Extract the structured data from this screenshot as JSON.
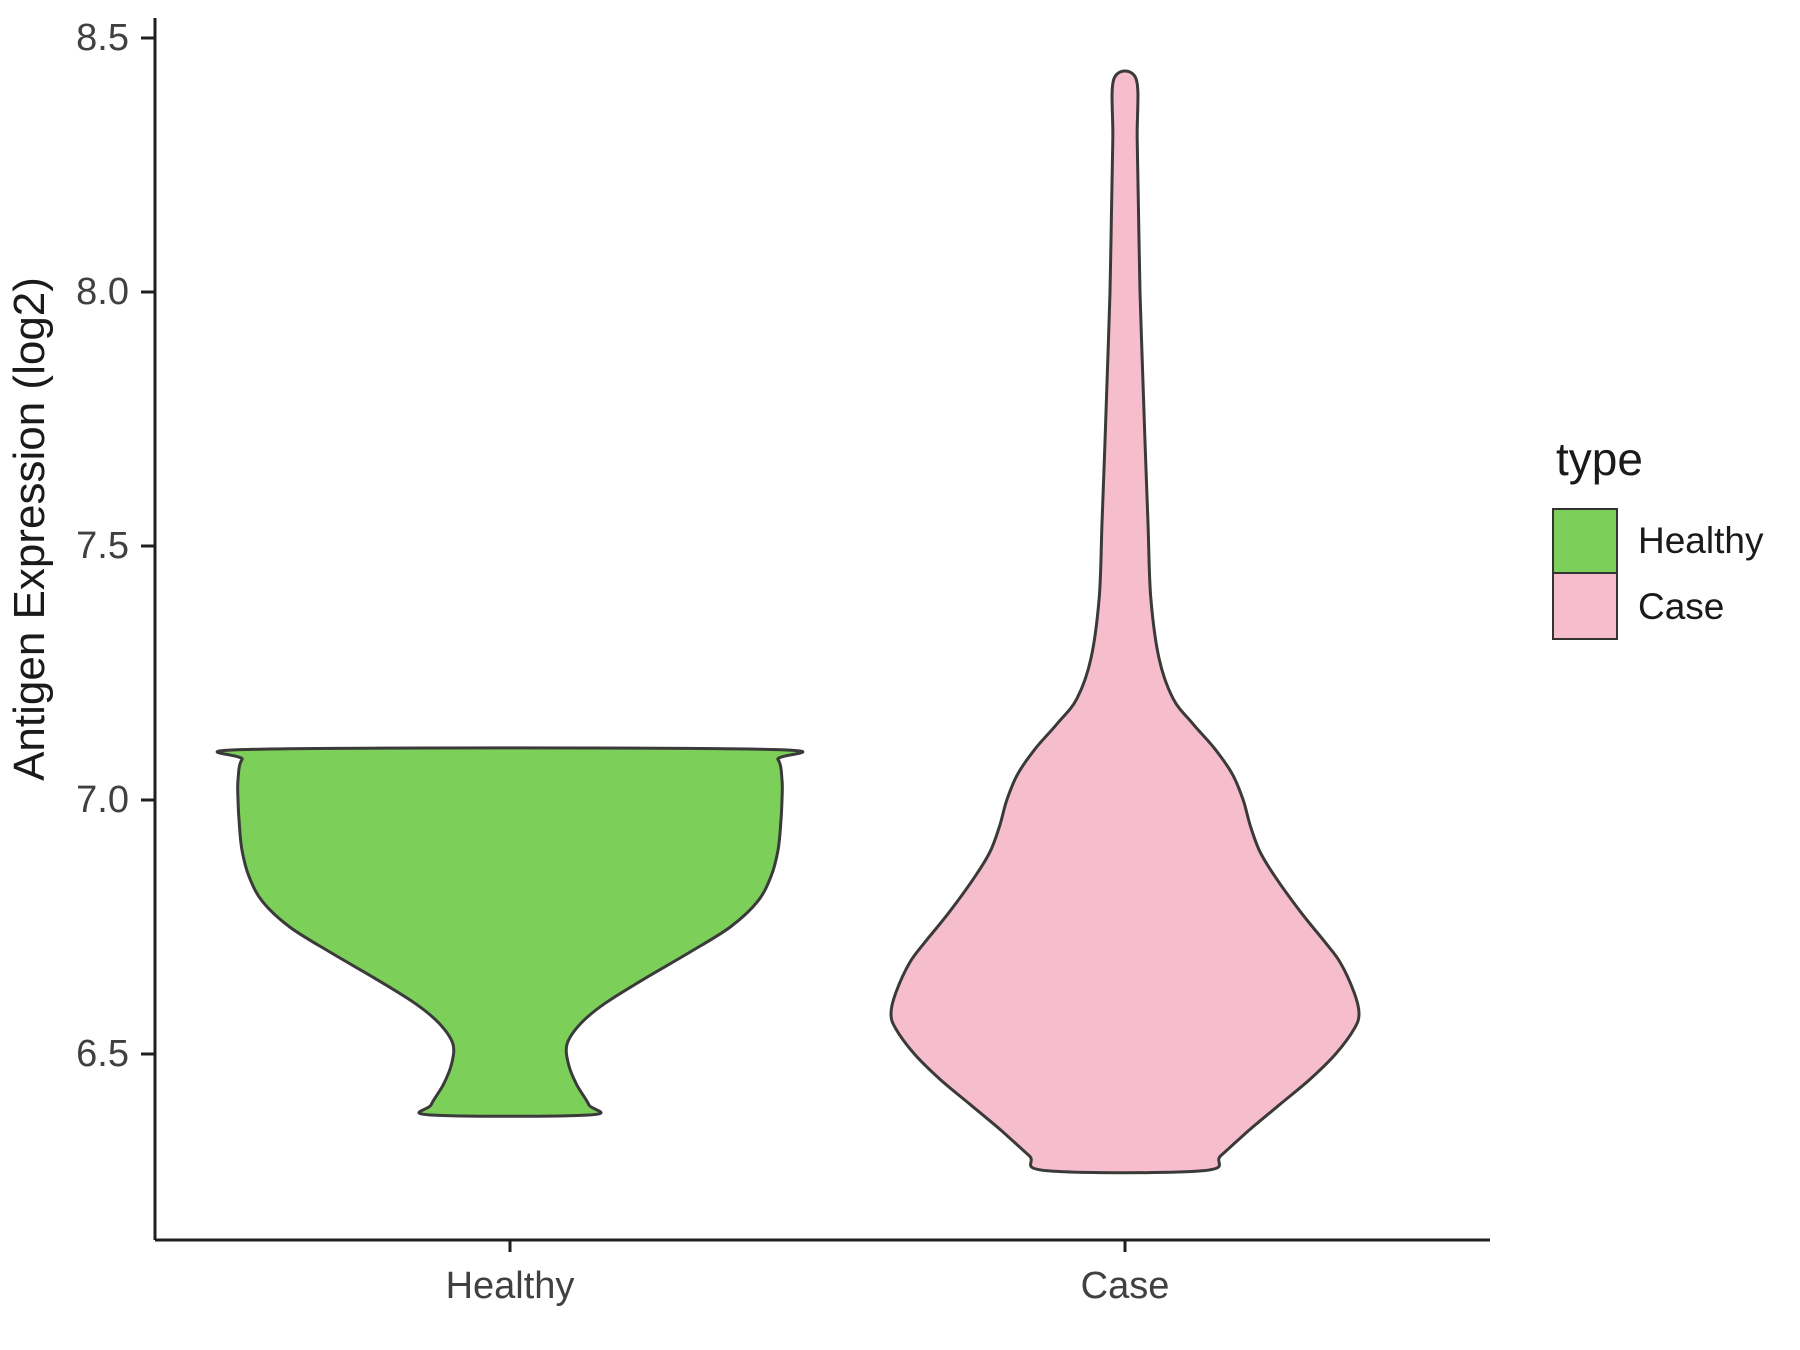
{
  "figure": {
    "background": "#ffffff"
  },
  "axes": {
    "y_title": "Antigen Expression (log2)",
    "y_tick_labels": [
      "6.5",
      "7.0",
      "7.5",
      "8.0",
      "8.5"
    ],
    "x_category_labels": [
      "Healthy",
      "Case"
    ],
    "axis_color": "#1f1f1f",
    "tick_label_color": "#404040"
  },
  "legend": {
    "title": "type",
    "entries": [
      {
        "label": "Healthy",
        "color": "#7cd05a"
      },
      {
        "label": "Case",
        "color": "#f6becd"
      }
    ]
  },
  "chart_data": {
    "type": "violin",
    "title": "",
    "xlabel": "",
    "ylabel": "Antigen Expression (log2)",
    "categories": [
      "Healthy",
      "Case"
    ],
    "y_ticks": [
      6.5,
      7.0,
      7.5,
      8.0,
      8.5
    ],
    "ylim": [
      6.14,
      8.54
    ],
    "grid": false,
    "legend_position": "right",
    "stroke_color": "#3a3a3a",
    "series": [
      {
        "name": "Healthy",
        "fill": "#7cd05a",
        "y_range": [
          6.38,
          7.1
        ],
        "profile": [
          [
            6.38,
            0.29
          ],
          [
            6.4,
            0.29
          ],
          [
            6.44,
            0.245
          ],
          [
            6.48,
            0.215
          ],
          [
            6.52,
            0.21
          ],
          [
            6.56,
            0.26
          ],
          [
            6.6,
            0.35
          ],
          [
            6.65,
            0.5
          ],
          [
            6.7,
            0.66
          ],
          [
            6.75,
            0.81
          ],
          [
            6.8,
            0.91
          ],
          [
            6.85,
            0.96
          ],
          [
            6.9,
            0.985
          ],
          [
            6.95,
            0.995
          ],
          [
            7.0,
            1.0
          ],
          [
            7.04,
            1.0
          ],
          [
            7.08,
            0.985
          ],
          [
            7.1,
            0.92
          ]
        ]
      },
      {
        "name": "Case",
        "fill": "#f6becd",
        "y_range": [
          6.27,
          8.42
        ],
        "profile": [
          [
            6.27,
            0.33
          ],
          [
            6.3,
            0.41
          ],
          [
            6.35,
            0.53
          ],
          [
            6.4,
            0.66
          ],
          [
            6.45,
            0.79
          ],
          [
            6.5,
            0.9
          ],
          [
            6.55,
            0.98
          ],
          [
            6.58,
            1.0
          ],
          [
            6.62,
            0.98
          ],
          [
            6.68,
            0.92
          ],
          [
            6.72,
            0.855
          ],
          [
            6.78,
            0.75
          ],
          [
            6.85,
            0.64
          ],
          [
            6.9,
            0.575
          ],
          [
            6.95,
            0.535
          ],
          [
            7.0,
            0.505
          ],
          [
            7.05,
            0.46
          ],
          [
            7.1,
            0.385
          ],
          [
            7.15,
            0.29
          ],
          [
            7.2,
            0.205
          ],
          [
            7.28,
            0.145
          ],
          [
            7.4,
            0.11
          ],
          [
            7.55,
            0.098
          ],
          [
            7.7,
            0.086
          ],
          [
            7.85,
            0.075
          ],
          [
            8.0,
            0.064
          ],
          [
            8.15,
            0.058
          ],
          [
            8.3,
            0.052
          ],
          [
            8.42,
            0.047
          ]
        ]
      }
    ]
  }
}
